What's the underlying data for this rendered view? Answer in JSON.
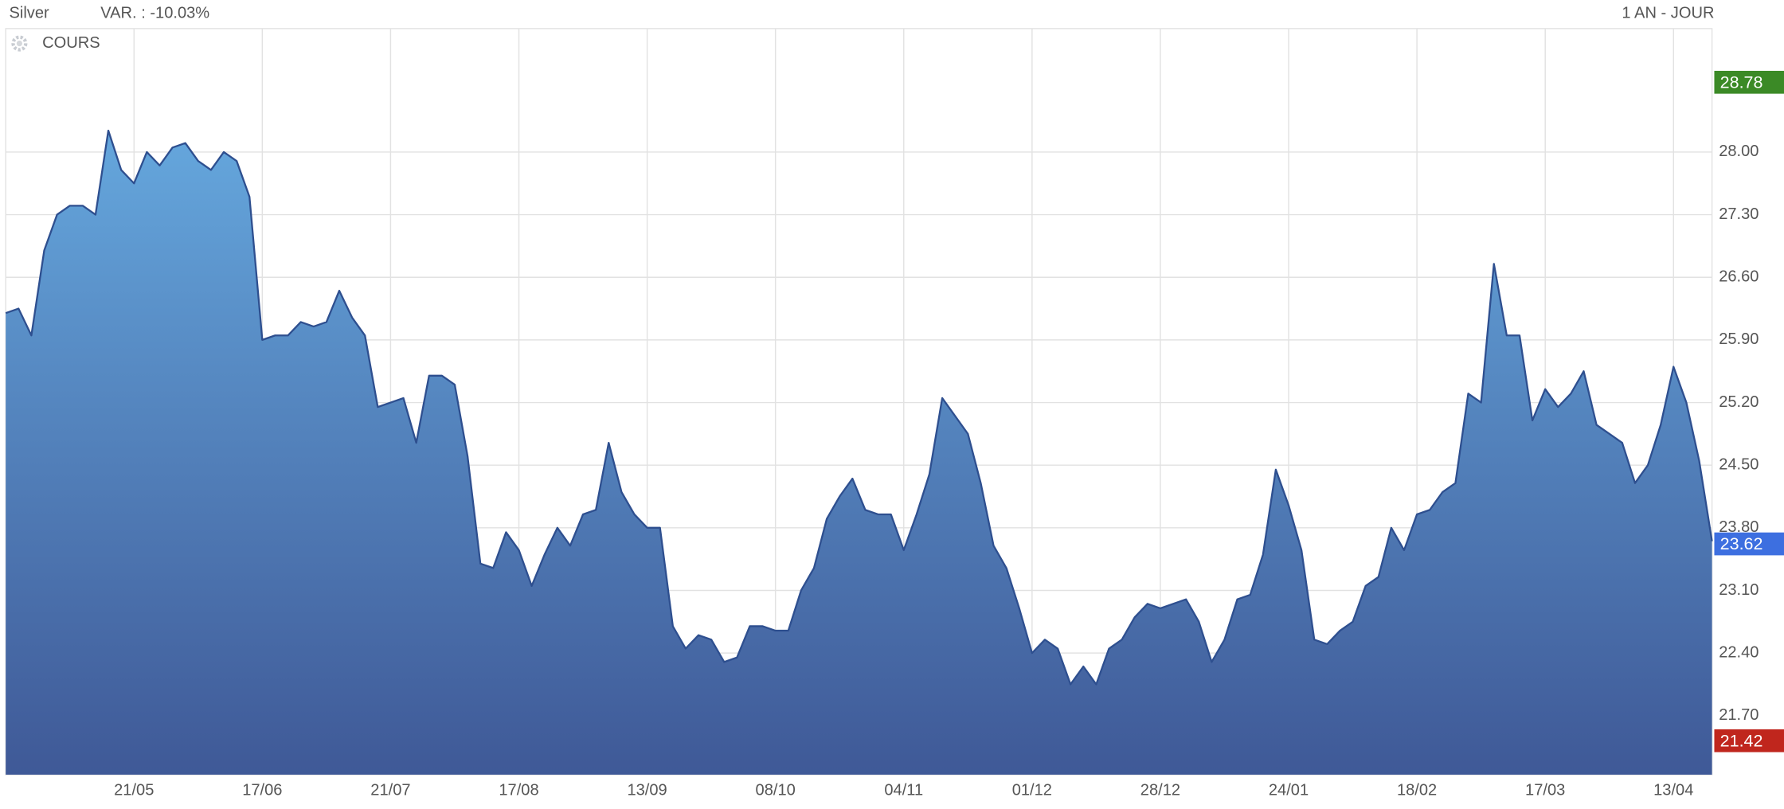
{
  "chart_data": {
    "type": "area",
    "title": "Silver",
    "subtitle": "VAR. : -10.03%",
    "period": "1 AN - JOUR",
    "series": [
      {
        "name": "COURS",
        "color": "#2e4f8f",
        "fill_gradient": [
          "#65a7dd",
          "#3f5997"
        ],
        "values": [
          26.2,
          26.25,
          25.95,
          26.9,
          27.3,
          27.4,
          27.4,
          27.3,
          28.24,
          27.8,
          27.65,
          28.0,
          27.85,
          28.05,
          28.1,
          27.9,
          27.8,
          28.0,
          27.9,
          27.5,
          25.9,
          25.95,
          25.95,
          26.1,
          26.05,
          26.1,
          26.45,
          26.15,
          25.95,
          25.15,
          25.2,
          25.25,
          24.75,
          25.5,
          25.5,
          25.4,
          24.6,
          23.4,
          23.35,
          23.75,
          23.55,
          23.15,
          23.5,
          23.8,
          23.6,
          23.95,
          24.0,
          24.75,
          24.2,
          23.95,
          23.8,
          23.8,
          22.7,
          22.45,
          22.6,
          22.55,
          22.3,
          22.35,
          22.7,
          22.7,
          22.65,
          22.65,
          23.1,
          23.35,
          23.9,
          24.15,
          24.35,
          24.0,
          23.95,
          23.95,
          23.55,
          23.95,
          24.4,
          25.25,
          25.05,
          24.85,
          24.3,
          23.6,
          23.35,
          22.9,
          22.4,
          22.55,
          22.45,
          22.05,
          22.25,
          22.05,
          22.45,
          22.55,
          22.8,
          22.95,
          22.9,
          22.95,
          23.0,
          22.75,
          22.3,
          22.55,
          23.0,
          23.05,
          23.5,
          24.45,
          24.05,
          23.55,
          22.55,
          22.5,
          22.65,
          22.75,
          23.15,
          23.25,
          23.8,
          23.55,
          23.95,
          24.0,
          24.2,
          24.3,
          25.3,
          25.2,
          26.75,
          25.95,
          25.95,
          25.0,
          25.35,
          25.15,
          25.3,
          25.55,
          24.95,
          24.85,
          24.75,
          24.3,
          24.5,
          24.95,
          25.6,
          25.2,
          24.55,
          23.65
        ]
      }
    ],
    "xlim": [
      0,
      133
    ],
    "xticks": [
      {
        "value": 10,
        "label": "21/05"
      },
      {
        "value": 20,
        "label": "17/06"
      },
      {
        "value": 30,
        "label": "21/07"
      },
      {
        "value": 40,
        "label": "17/08"
      },
      {
        "value": 50,
        "label": "13/09"
      },
      {
        "value": 60,
        "label": "08/10"
      },
      {
        "value": 70,
        "label": "04/11"
      },
      {
        "value": 80,
        "label": "01/12"
      },
      {
        "value": 90,
        "label": "28/12"
      },
      {
        "value": 100,
        "label": "24/01"
      },
      {
        "value": 110,
        "label": "18/02"
      },
      {
        "value": 120,
        "label": "17/03"
      },
      {
        "value": 130,
        "label": "13/04"
      }
    ],
    "ylim": [
      21.04,
      29.38
    ],
    "yticks": [
      {
        "value": 28,
        "label": "28.00"
      },
      {
        "value": 27.3,
        "label": "27.30"
      },
      {
        "value": 26.6,
        "label": "26.60"
      },
      {
        "value": 25.9,
        "label": "25.90"
      },
      {
        "value": 25.2,
        "label": "25.20"
      },
      {
        "value": 24.5,
        "label": "24.50"
      },
      {
        "value": 23.8,
        "label": "23.80"
      },
      {
        "value": 23.1,
        "label": "23.10"
      },
      {
        "value": 22.4,
        "label": "22.40"
      },
      {
        "value": 21.7,
        "label": "21.70"
      }
    ],
    "grid": true,
    "price_markers": [
      {
        "value": 28.78,
        "color": "#3b8a26"
      },
      {
        "value": 23.62,
        "color": "#3d6fe0"
      },
      {
        "value": 21.42,
        "color": "#c0261d"
      }
    ]
  }
}
